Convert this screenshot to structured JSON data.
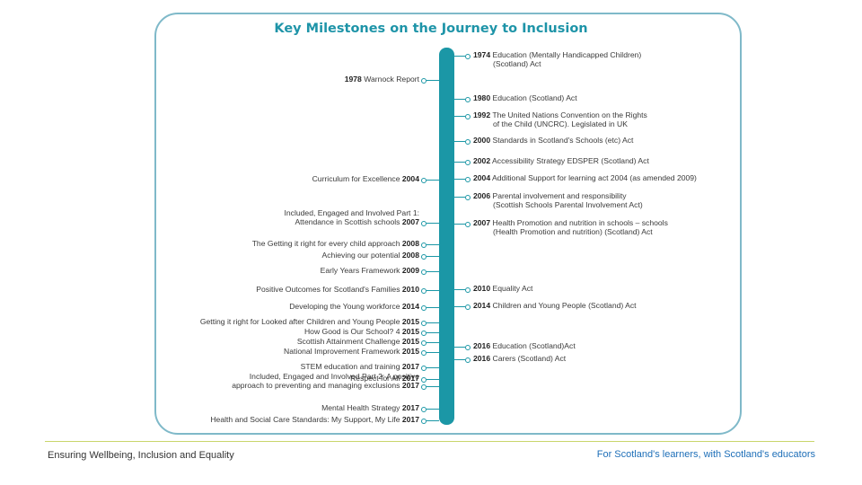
{
  "title": "Key Milestones on the Journey to Inclusion",
  "left_items": [
    {
      "pre": "1978",
      "text": " Warnock Report",
      "lines": []
    },
    {
      "text": "Curriculum for Excellence ",
      "year": "2004"
    },
    {
      "text": "Included, Engaged and Involved Part 1:",
      "text2": "Attendance in Scottish schools ",
      "year": "2007"
    },
    {
      "text": "The Getting it right for every child approach ",
      "year": "2008"
    },
    {
      "text": "Achieving our potential ",
      "year": "2008"
    },
    {
      "text": "Early Years Framework ",
      "year": "2009"
    },
    {
      "text": "Positive Outcomes for Scotland's Families ",
      "year": "2010"
    },
    {
      "text": "Developing the Young workforce ",
      "year": "2014"
    },
    {
      "text": "Getting it right for Looked after Children and Young People ",
      "year": "2015"
    },
    {
      "text": "How Good is Our School? 4 ",
      "year": "2015"
    },
    {
      "text": "Scottish Attainment Challenge ",
      "year": "2015"
    },
    {
      "text": "National Improvement Framework ",
      "year": "2015"
    },
    {
      "text": "STEM education and training ",
      "year": "2017"
    },
    {
      "text": "Respect for All ",
      "year": "2017"
    },
    {
      "text": "Included, Engaged and Involved Part 2: A positive",
      "text2": "approach to preventing and managing exclusions ",
      "year": "2017"
    },
    {
      "text": "Mental Health Strategy ",
      "year": "2017"
    },
    {
      "text": "Health and Social Care Standards: My Support, My Life ",
      "year": "2017"
    }
  ],
  "right_items": [
    {
      "year": "1974",
      "text": " Education (Mentally Handicapped Children)",
      "text2": "(Scotland) Act"
    },
    {
      "year": "1980",
      "text": " Education (Scotland) Act"
    },
    {
      "year": "1992",
      "text": " The United Nations Convention on the Rights",
      "text2": "of the Child (UNCRC). Legislated in UK"
    },
    {
      "year": "2000",
      "text": " Standards in Scotland's Schools (etc) Act"
    },
    {
      "year": "2002",
      "text": " Accessibility Strategy EDSPER (Scotland) Act"
    },
    {
      "year": "2004",
      "text": " Additional Support for learning act 2004 (as amended 2009)"
    },
    {
      "year": "2006",
      "text": " Parental involvement and responsibility",
      "text2": "(Scottish Schools Parental Involvement Act)"
    },
    {
      "year": "2007",
      "text": " Health Promotion and nutrition in schools – schools",
      "text2": "(Health Promotion and nutrition) (Scotland) Act"
    },
    {
      "year": "2010",
      "text": " Equality Act"
    },
    {
      "year": "2014",
      "text": " Children and Young People (Scotland) Act"
    },
    {
      "year": "2016",
      "text": " Education (Scotland)Act"
    },
    {
      "year": "2016",
      "text": " Carers (Scotland) Act"
    }
  ],
  "footer": {
    "left": "Ensuring Wellbeing, Inclusion and Equality",
    "right": "For Scotland's learners, with Scotland's educators"
  },
  "colors": {
    "accent": "#1b97a6",
    "title": "#1e94a8",
    "border": "#7fb9c9",
    "footer_rule": "#c9d66b",
    "footer_right": "#1e6fb8"
  }
}
